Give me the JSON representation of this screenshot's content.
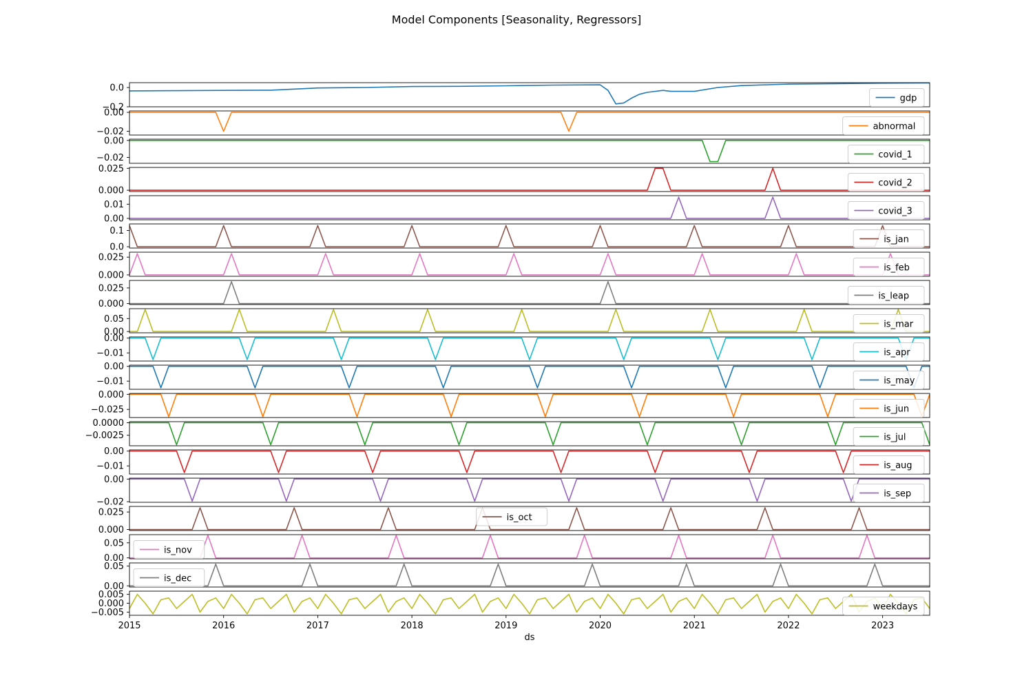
{
  "figure": {
    "title": "Model Components [Seasonality, Regressors]",
    "xlabel": "ds"
  },
  "chart_data": {
    "type": "line",
    "title": "Model Components [Seasonality, Regressors]",
    "xlabel": "ds",
    "x_ticks": [
      "2015",
      "2016",
      "2017",
      "2018",
      "2019",
      "2020",
      "2021",
      "2022",
      "2023"
    ],
    "x_range": [
      "2015-01-01",
      "2023-07-01"
    ],
    "sampling": "monthly",
    "grid": false,
    "panels": [
      {
        "name": "gdp",
        "color": "#1f77b4",
        "legend_loc": "center-right",
        "ylim": [
          -0.2,
          0.05
        ],
        "yticks": [
          0.0,
          -0.2
        ],
        "ytick_labels": [
          "0.0",
          "−0.2"
        ],
        "points": [
          [
            "2015-01-01",
            -0.035
          ],
          [
            "2015-07-01",
            -0.033
          ],
          [
            "2016-01-01",
            -0.03
          ],
          [
            "2016-07-01",
            -0.028
          ],
          [
            "2017-01-01",
            -0.005
          ],
          [
            "2017-07-01",
            0.0
          ],
          [
            "2018-01-01",
            0.01
          ],
          [
            "2018-07-01",
            0.012
          ],
          [
            "2019-01-01",
            0.018
          ],
          [
            "2019-07-01",
            0.025
          ],
          [
            "2020-01-01",
            0.028
          ],
          [
            "2020-02-01",
            -0.03
          ],
          [
            "2020-03-01",
            -0.17
          ],
          [
            "2020-04-01",
            -0.16
          ],
          [
            "2020-05-01",
            -0.11
          ],
          [
            "2020-06-01",
            -0.07
          ],
          [
            "2020-07-01",
            -0.05
          ],
          [
            "2020-09-01",
            -0.03
          ],
          [
            "2020-10-01",
            -0.04
          ],
          [
            "2021-01-01",
            -0.04
          ],
          [
            "2021-04-01",
            0.0
          ],
          [
            "2021-07-01",
            0.02
          ],
          [
            "2022-01-01",
            0.035
          ],
          [
            "2022-07-01",
            0.04
          ],
          [
            "2023-01-01",
            0.045
          ],
          [
            "2023-07-01",
            0.048
          ]
        ]
      },
      {
        "name": "abnormal",
        "color": "#ff7f0e",
        "legend_loc": "center-right",
        "ylim": [
          -0.024,
          0.0015
        ],
        "yticks": [
          0.0,
          -0.02
        ],
        "ytick_labels": [
          "0.00",
          "−0.02"
        ],
        "points": [
          [
            "2015-01-01",
            0
          ],
          [
            "2015-12-01",
            0
          ],
          [
            "2016-01-01",
            -0.02
          ],
          [
            "2016-02-01",
            0
          ],
          [
            "2019-08-01",
            0
          ],
          [
            "2019-09-01",
            -0.02
          ],
          [
            "2019-10-01",
            0
          ],
          [
            "2023-07-01",
            0
          ]
        ]
      },
      {
        "name": "covid_1",
        "color": "#2ca02c",
        "legend_loc": "center-right",
        "ylim": [
          -0.027,
          0.0015
        ],
        "yticks": [
          0.0,
          -0.02
        ],
        "ytick_labels": [
          "0.00",
          "−0.02"
        ],
        "points": [
          [
            "2015-01-01",
            0
          ],
          [
            "2021-02-01",
            0
          ],
          [
            "2021-03-01",
            -0.025
          ],
          [
            "2021-04-01",
            -0.025
          ],
          [
            "2021-05-01",
            0
          ],
          [
            "2023-07-01",
            0
          ]
        ]
      },
      {
        "name": "covid_2",
        "color": "#d62728",
        "legend_loc": "center-right",
        "ylim": [
          -0.0015,
          0.026
        ],
        "yticks": [
          0.025,
          0.0
        ],
        "ytick_labels": [
          "0.025",
          "0.000"
        ],
        "points": [
          [
            "2015-01-01",
            0
          ],
          [
            "2020-07-01",
            0
          ],
          [
            "2020-08-01",
            0.025
          ],
          [
            "2020-09-01",
            0.025
          ],
          [
            "2020-10-01",
            0
          ],
          [
            "2021-10-01",
            0
          ],
          [
            "2021-11-01",
            0.025
          ],
          [
            "2021-12-01",
            0
          ],
          [
            "2023-07-01",
            0
          ]
        ]
      },
      {
        "name": "covid_3",
        "color": "#9467bd",
        "legend_loc": "center-right",
        "ylim": [
          -0.001,
          0.016
        ],
        "yticks": [
          0.01,
          0.0
        ],
        "ytick_labels": [
          "0.01",
          "0.00"
        ],
        "points": [
          [
            "2015-01-01",
            0
          ],
          [
            "2020-10-01",
            0
          ],
          [
            "2020-11-01",
            0.015
          ],
          [
            "2020-12-01",
            0
          ],
          [
            "2021-10-01",
            0
          ],
          [
            "2021-11-01",
            0.015
          ],
          [
            "2021-12-01",
            0
          ],
          [
            "2023-07-01",
            0
          ]
        ]
      },
      {
        "name": "is_jan",
        "color": "#8c564b",
        "legend_loc": "center-right",
        "ylim": [
          -0.008,
          0.14
        ],
        "yticks": [
          0.1,
          0.0
        ],
        "ytick_labels": [
          "0.1",
          "0.0"
        ],
        "peak": 0.13,
        "months": [
          1
        ]
      },
      {
        "name": "is_feb",
        "color": "#e377c2",
        "legend_loc": "center-right",
        "ylim": [
          -0.002,
          0.032
        ],
        "yticks": [
          0.025,
          0.0
        ],
        "ytick_labels": [
          "0.025",
          "0.000"
        ],
        "peak": 0.03,
        "months": [
          2
        ]
      },
      {
        "name": "is_leap",
        "color": "#7f7f7f",
        "legend_loc": "center-right",
        "ylim": [
          -0.0015,
          0.037
        ],
        "yticks": [
          0.025,
          0.0
        ],
        "ytick_labels": [
          "0.025",
          "0.000"
        ],
        "points": [
          [
            "2015-01-01",
            0
          ],
          [
            "2016-01-01",
            0
          ],
          [
            "2016-02-01",
            0.035
          ],
          [
            "2016-03-01",
            0
          ],
          [
            "2020-01-01",
            0
          ],
          [
            "2020-02-01",
            0.035
          ],
          [
            "2020-03-01",
            0
          ],
          [
            "2023-07-01",
            0
          ]
        ]
      },
      {
        "name": "is_mar",
        "color": "#bcbd22",
        "legend_loc": "center-right",
        "ylim": [
          -0.005,
          0.088
        ],
        "yticks": [
          0.05,
          0.0
        ],
        "ytick_labels": [
          "0.05",
          "0.00"
        ],
        "peak": 0.085,
        "months": [
          3
        ]
      },
      {
        "name": "is_apr",
        "color": "#17becf",
        "legend_loc": "center-right",
        "ylim": [
          -0.0155,
          0.0008
        ],
        "yticks": [
          0.0,
          -0.01
        ],
        "ytick_labels": [
          "0.00",
          "−0.01"
        ],
        "peak": -0.0145,
        "months": [
          4
        ]
      },
      {
        "name": "is_may",
        "color": "#1f77b4",
        "legend_loc": "center-right",
        "ylim": [
          -0.0155,
          0.0008
        ],
        "yticks": [
          0.0,
          -0.01
        ],
        "ytick_labels": [
          "0.00",
          "−0.01"
        ],
        "peak": -0.0145,
        "months": [
          5
        ]
      },
      {
        "name": "is_jun",
        "color": "#ff7f0e",
        "legend_loc": "center-right",
        "ylim": [
          -0.0385,
          0.0015
        ],
        "yticks": [
          0.0,
          -0.025
        ],
        "ytick_labels": [
          "0.000",
          "−0.025"
        ],
        "peak": -0.037,
        "months": [
          6
        ]
      },
      {
        "name": "is_jul",
        "color": "#2ca02c",
        "legend_loc": "center-right",
        "ylim": [
          -0.0046,
          0.0002
        ],
        "yticks": [
          0.0,
          -0.0025
        ],
        "ytick_labels": [
          "0.0000",
          "−0.0025"
        ],
        "peak": -0.0044,
        "months": [
          7
        ]
      },
      {
        "name": "is_aug",
        "color": "#d62728",
        "legend_loc": "center-right",
        "ylim": [
          -0.0155,
          0.0008
        ],
        "yticks": [
          0.0,
          -0.01
        ],
        "ytick_labels": [
          "0.00",
          "−0.01"
        ],
        "peak": -0.0145,
        "months": [
          8
        ]
      },
      {
        "name": "is_sep",
        "color": "#9467bd",
        "legend_loc": "center-right",
        "ylim": [
          -0.0205,
          0.0008
        ],
        "yticks": [
          0.0,
          -0.02
        ],
        "ytick_labels": [
          "0.00",
          "−0.02"
        ],
        "peak": -0.0195,
        "months": [
          9
        ]
      },
      {
        "name": "is_oct",
        "color": "#8c564b",
        "legend_loc": "upper-center",
        "ylim": [
          -0.0015,
          0.033
        ],
        "yticks": [
          0.025,
          0.0
        ],
        "ytick_labels": [
          "0.025",
          "0.000"
        ],
        "peak": 0.031,
        "months": [
          10
        ]
      },
      {
        "name": "is_nov",
        "color": "#e377c2",
        "legend_loc": "center-left",
        "ylim": [
          -0.003,
          0.077
        ],
        "yticks": [
          0.05,
          0.0
        ],
        "ytick_labels": [
          "0.05",
          "0.00"
        ],
        "peak": 0.075,
        "months": [
          11
        ]
      },
      {
        "name": "is_dec",
        "color": "#7f7f7f",
        "legend_loc": "center-left",
        "ylim": [
          -0.003,
          0.058
        ],
        "yticks": [
          0.05,
          0.0
        ],
        "ytick_labels": [
          "0.05",
          "0.00"
        ],
        "peak": 0.055,
        "months": [
          12
        ]
      },
      {
        "name": "weekdays",
        "color": "#bcbd22",
        "legend_loc": "center-right",
        "ylim": [
          -0.0068,
          0.0068
        ],
        "yticks": [
          0.005,
          0.0,
          -0.005
        ],
        "ytick_labels": [
          "0.005",
          "0.000",
          "−0.005"
        ],
        "pattern": [
          -0.003,
          0.005,
          0.0,
          -0.006,
          0.002,
          0.003,
          -0.003,
          0.001,
          0.005,
          -0.005,
          0.001,
          0.003
        ]
      }
    ]
  }
}
